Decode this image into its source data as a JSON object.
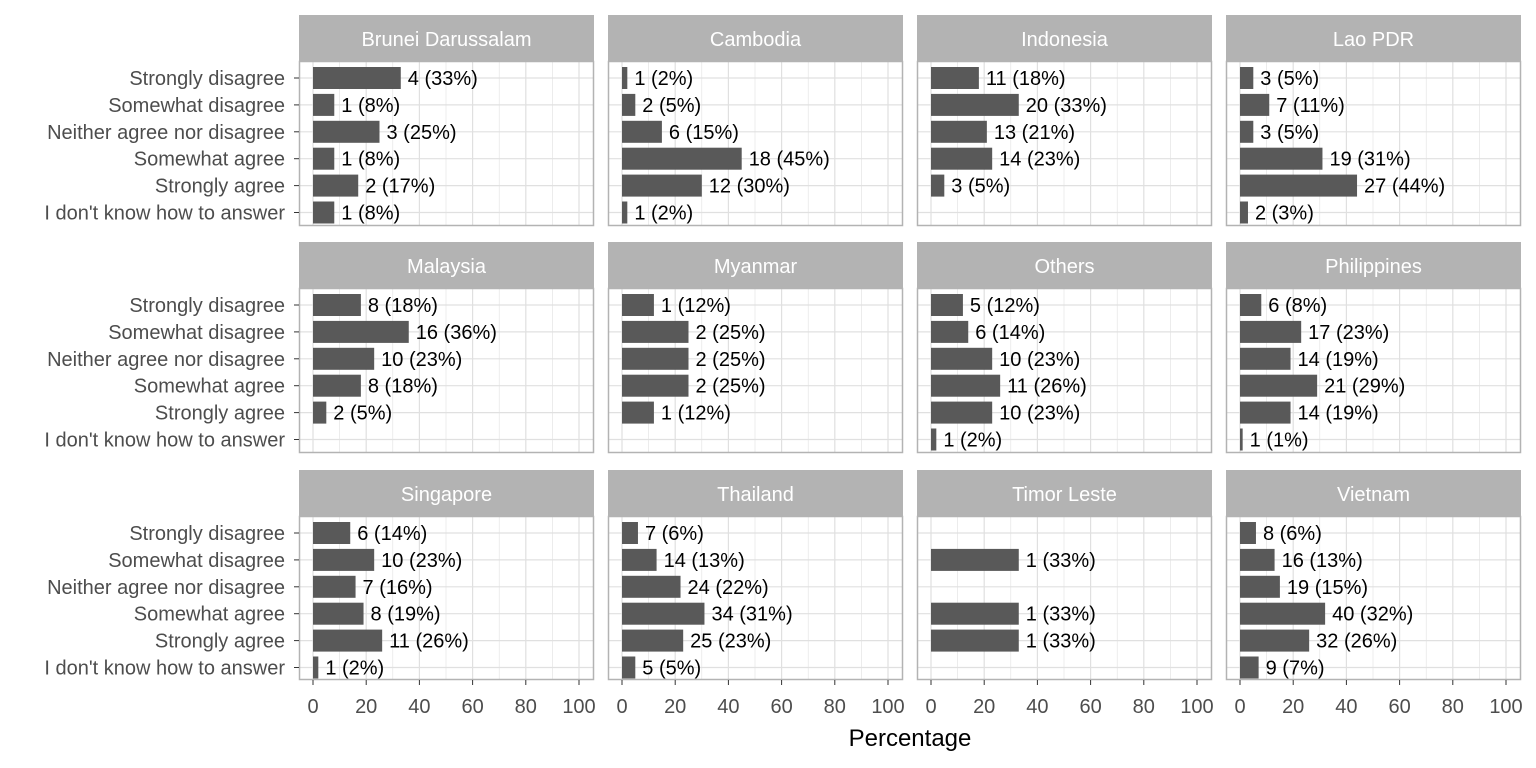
{
  "chart_data": {
    "type": "bar",
    "orientation": "horizontal",
    "facet_layout": {
      "rows": 3,
      "cols": 4
    },
    "xlabel": "Percentage",
    "xlim": [
      0,
      100
    ],
    "xticks": [
      0,
      20,
      40,
      60,
      80,
      100
    ],
    "grid": true,
    "categories": [
      "Strongly disagree",
      "Somewhat disagree",
      "Neither agree nor disagree",
      "Somewhat agree",
      "Strongly agree",
      "I don't know how to answer"
    ],
    "colors": {
      "bar": "#595959",
      "strip": "#b3b3b3",
      "panel_border": "#b3b3b3",
      "grid": "#e0e0e0"
    },
    "panels": [
      {
        "name": "Brunei Darussalam",
        "values": [
          33,
          8,
          25,
          8,
          17,
          8
        ],
        "labels": [
          "4 (33%)",
          "1 (8%)",
          "3 (25%)",
          "1 (8%)",
          "2 (17%)",
          "1 (8%)"
        ]
      },
      {
        "name": "Cambodia",
        "values": [
          2,
          5,
          15,
          45,
          30,
          2
        ],
        "labels": [
          "1 (2%)",
          "2 (5%)",
          "6 (15%)",
          "18 (45%)",
          "12 (30%)",
          "1 (2%)"
        ]
      },
      {
        "name": "Indonesia",
        "values": [
          18,
          33,
          21,
          23,
          5,
          null
        ],
        "labels": [
          "11 (18%)",
          "20 (33%)",
          "13 (21%)",
          "14 (23%)",
          "3 (5%)",
          ""
        ]
      },
      {
        "name": "Lao PDR",
        "values": [
          5,
          11,
          5,
          31,
          44,
          3
        ],
        "labels": [
          "3 (5%)",
          "7 (11%)",
          "3 (5%)",
          "19 (31%)",
          "27 (44%)",
          "2 (3%)"
        ]
      },
      {
        "name": "Malaysia",
        "values": [
          18,
          36,
          23,
          18,
          5,
          null
        ],
        "labels": [
          "8 (18%)",
          "16 (36%)",
          "10 (23%)",
          "8 (18%)",
          "2 (5%)",
          ""
        ]
      },
      {
        "name": "Myanmar",
        "values": [
          12,
          25,
          25,
          25,
          12,
          null
        ],
        "labels": [
          "1 (12%)",
          "2 (25%)",
          "2 (25%)",
          "2 (25%)",
          "1 (12%)",
          ""
        ]
      },
      {
        "name": "Others",
        "values": [
          12,
          14,
          23,
          26,
          23,
          2
        ],
        "labels": [
          "5 (12%)",
          "6 (14%)",
          "10 (23%)",
          "11 (26%)",
          "10 (23%)",
          "1 (2%)"
        ]
      },
      {
        "name": "Philippines",
        "values": [
          8,
          23,
          19,
          29,
          19,
          1
        ],
        "labels": [
          "6 (8%)",
          "17 (23%)",
          "14 (19%)",
          "21 (29%)",
          "14 (19%)",
          "1 (1%)"
        ]
      },
      {
        "name": "Singapore",
        "values": [
          14,
          23,
          16,
          19,
          26,
          2
        ],
        "labels": [
          "6 (14%)",
          "10 (23%)",
          "7 (16%)",
          "8 (19%)",
          "11 (26%)",
          "1 (2%)"
        ]
      },
      {
        "name": "Thailand",
        "values": [
          6,
          13,
          22,
          31,
          23,
          5
        ],
        "labels": [
          "7 (6%)",
          "14 (13%)",
          "24 (22%)",
          "34 (31%)",
          "25 (23%)",
          "5 (5%)"
        ]
      },
      {
        "name": "Timor Leste",
        "values": [
          null,
          33,
          null,
          33,
          33,
          null
        ],
        "labels": [
          "",
          "1 (33%)",
          "",
          "1 (33%)",
          "1 (33%)",
          ""
        ]
      },
      {
        "name": "Vietnam",
        "values": [
          6,
          13,
          15,
          32,
          26,
          7
        ],
        "labels": [
          "8 (6%)",
          "16 (13%)",
          "19 (15%)",
          "40 (32%)",
          "32 (26%)",
          "9 (7%)"
        ]
      }
    ]
  }
}
